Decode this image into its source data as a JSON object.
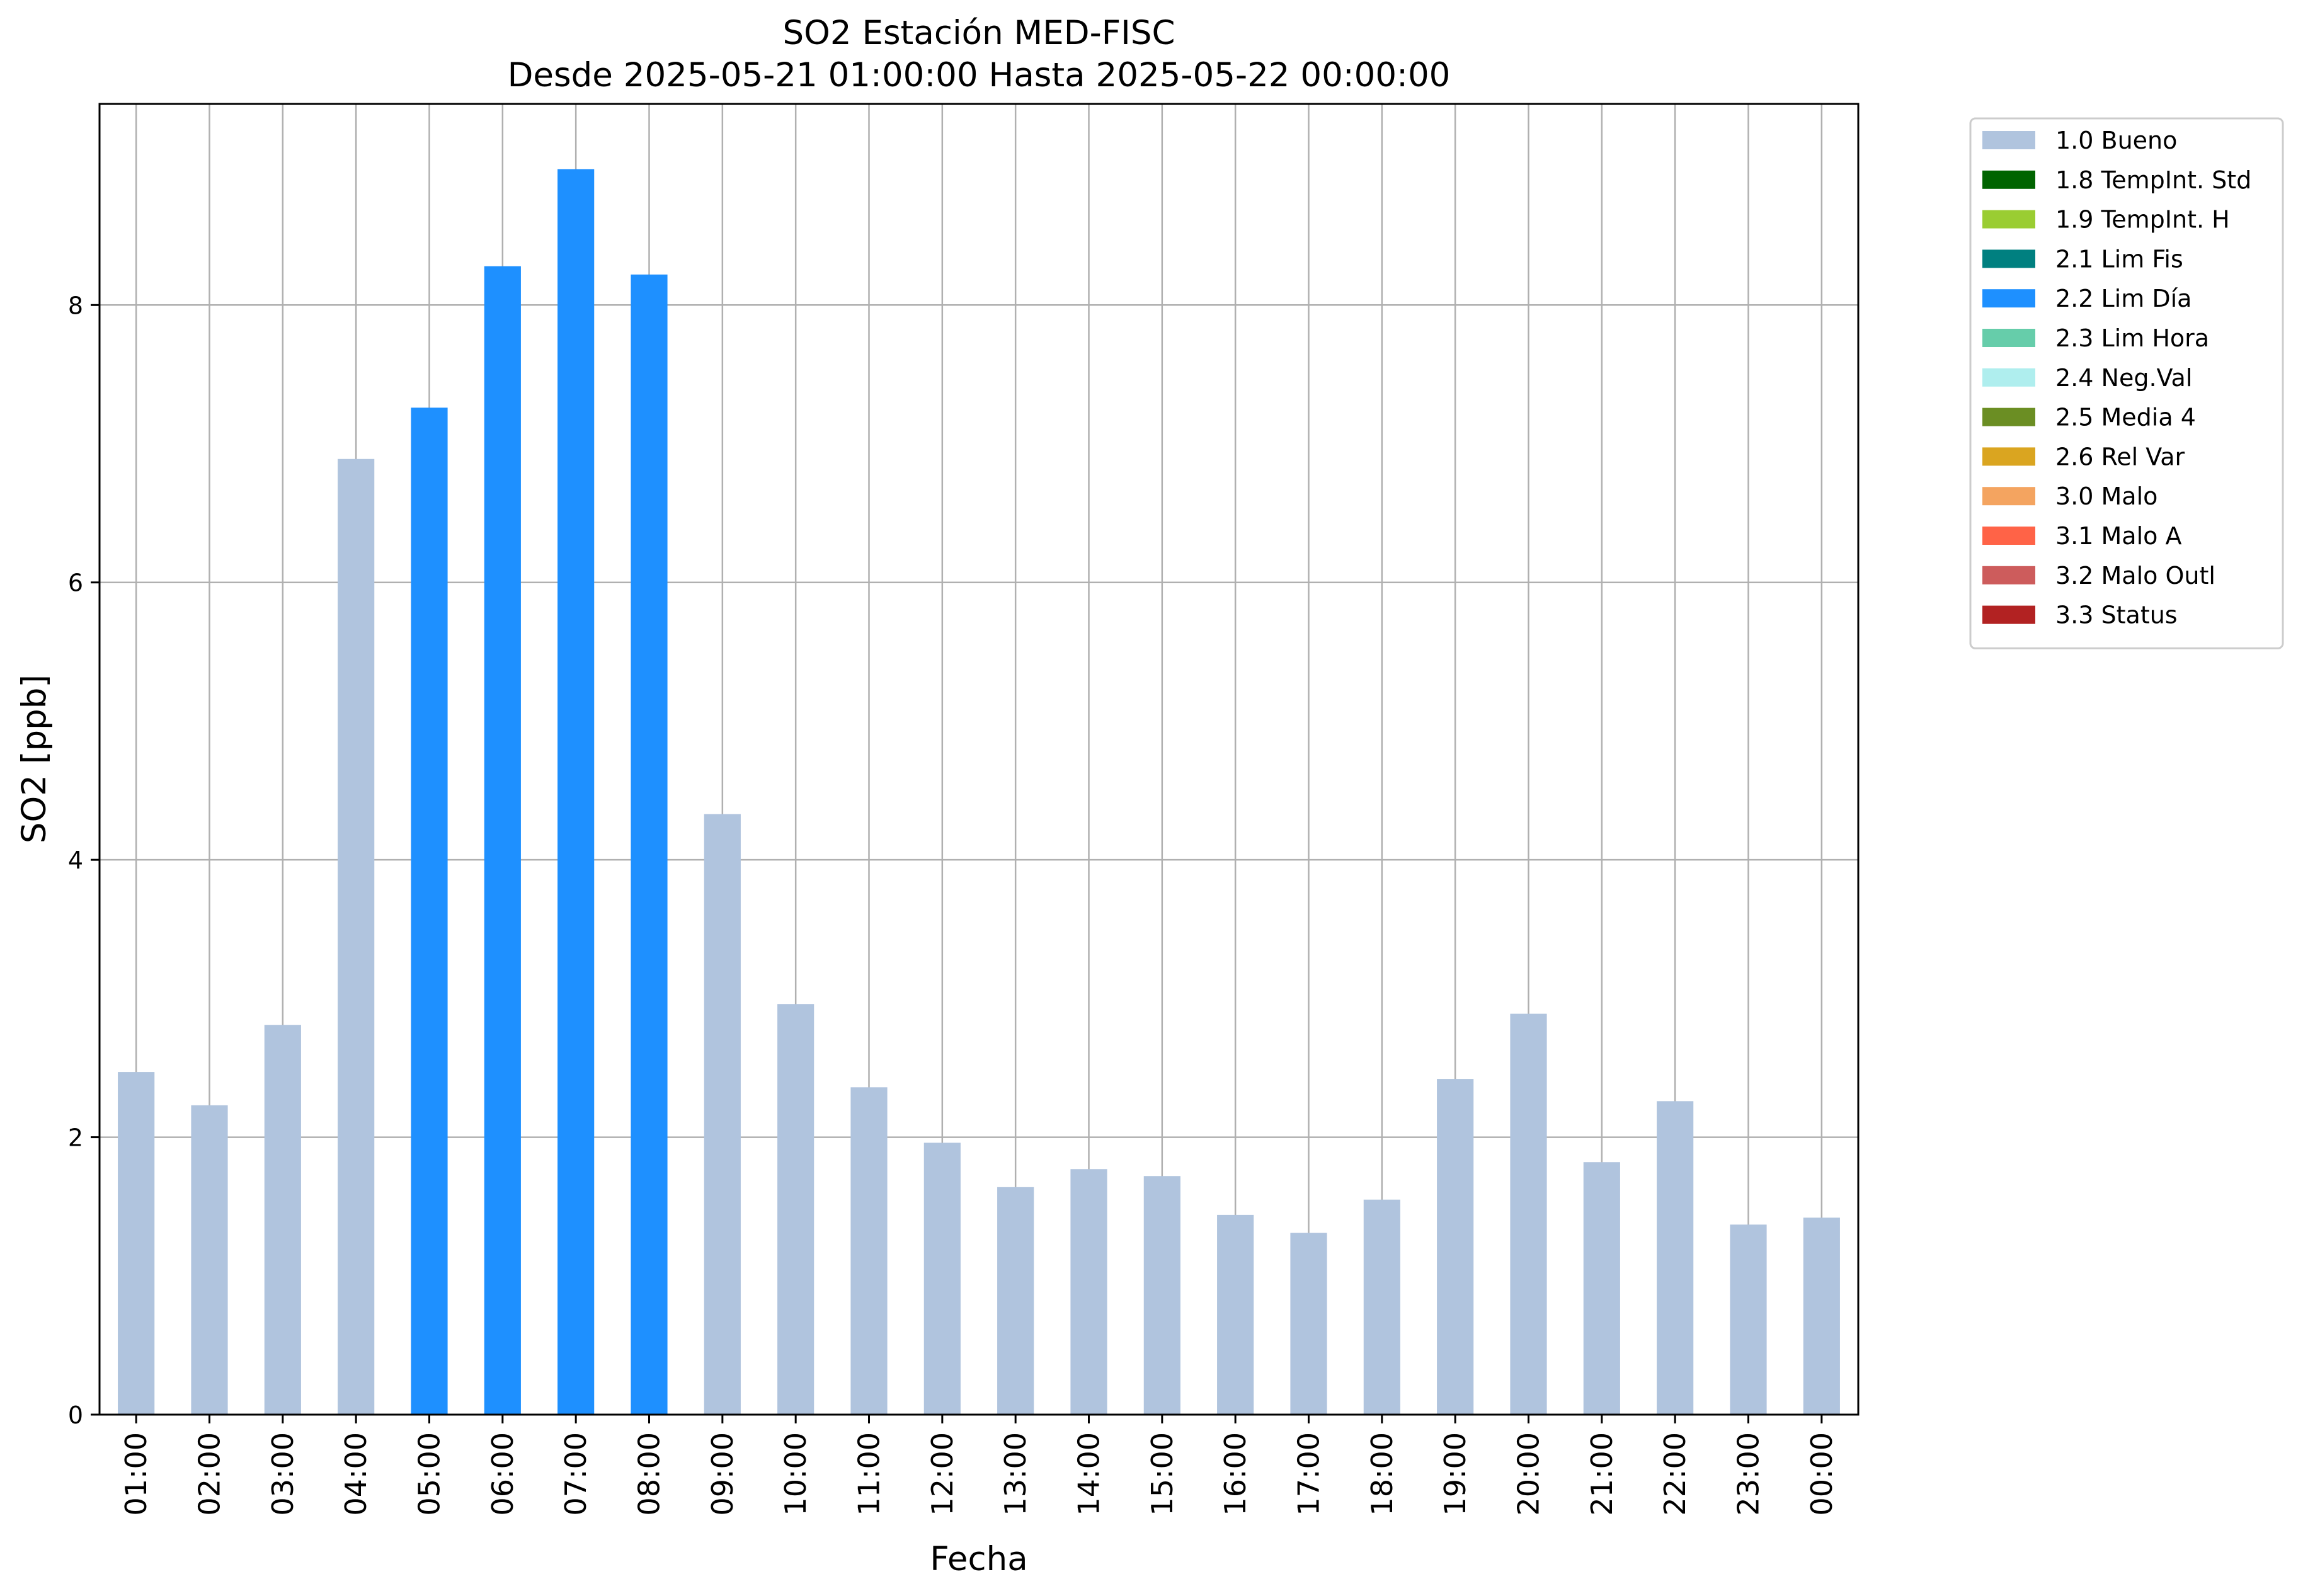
{
  "chart_data": {
    "type": "bar",
    "title": "SO2 Estación MED-FISC",
    "subtitle": "Desde 2025-05-21 01:00:00 Hasta 2025-05-22 00:00:00",
    "xlabel": "Fecha",
    "ylabel": "SO2 [ppb]",
    "ylim": [
      0,
      9.45
    ],
    "yticks": [
      0,
      2,
      4,
      6,
      8
    ],
    "grid": true,
    "legend_position": "outside-top-right",
    "categories": [
      "01:00",
      "02:00",
      "03:00",
      "04:00",
      "05:00",
      "06:00",
      "07:00",
      "08:00",
      "09:00",
      "10:00",
      "11:00",
      "12:00",
      "13:00",
      "14:00",
      "15:00",
      "16:00",
      "17:00",
      "18:00",
      "19:00",
      "20:00",
      "21:00",
      "22:00",
      "23:00",
      "00:00"
    ],
    "values": [
      2.47,
      2.23,
      2.81,
      6.89,
      7.26,
      8.28,
      8.98,
      8.22,
      4.33,
      2.96,
      2.36,
      1.96,
      1.64,
      1.77,
      1.72,
      1.44,
      1.31,
      1.55,
      2.42,
      2.89,
      1.82,
      2.26,
      1.37,
      1.42
    ],
    "flags": [
      "1.0 Bueno",
      "1.0 Bueno",
      "1.0 Bueno",
      "1.0 Bueno",
      "2.2 Lim Día",
      "2.2 Lim Día",
      "2.2 Lim Día",
      "2.2 Lim Día",
      "1.0 Bueno",
      "1.0 Bueno",
      "1.0 Bueno",
      "1.0 Bueno",
      "1.0 Bueno",
      "1.0 Bueno",
      "1.0 Bueno",
      "1.0 Bueno",
      "1.0 Bueno",
      "1.0 Bueno",
      "1.0 Bueno",
      "1.0 Bueno",
      "1.0 Bueno",
      "1.0 Bueno",
      "1.0 Bueno",
      "1.0 Bueno"
    ],
    "legend": [
      {
        "label": "1.0 Bueno",
        "color": "#b0c4de"
      },
      {
        "label": "1.8 TempInt. Std",
        "color": "#006400"
      },
      {
        "label": "1.9 TempInt. H",
        "color": "#9acd32"
      },
      {
        "label": "2.1 Lim Fis",
        "color": "#008080"
      },
      {
        "label": "2.2 Lim Día",
        "color": "#1e90ff"
      },
      {
        "label": "2.3 Lim Hora",
        "color": "#66cdaa"
      },
      {
        "label": "2.4 Neg.Val",
        "color": "#afeeee"
      },
      {
        "label": "2.5 Media 4",
        "color": "#6b8e23"
      },
      {
        "label": "2.6 Rel Var",
        "color": "#daa520"
      },
      {
        "label": "3.0 Malo",
        "color": "#f4a460"
      },
      {
        "label": "3.1 Malo A",
        "color": "#ff6347"
      },
      {
        "label": "3.2 Malo Outl",
        "color": "#cd5c5c"
      },
      {
        "label": "3.3 Status",
        "color": "#b22222"
      }
    ]
  }
}
